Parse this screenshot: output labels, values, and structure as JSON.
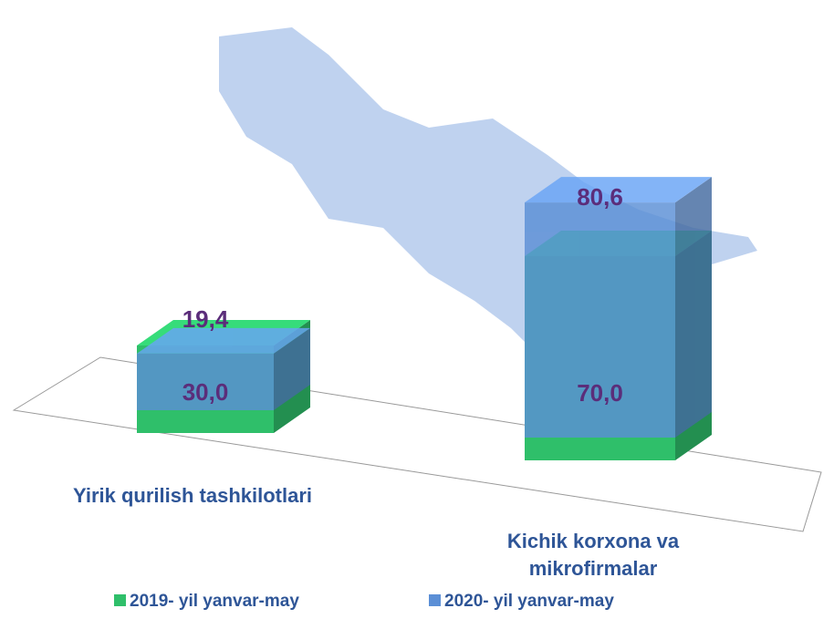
{
  "chart_data": {
    "type": "bar3d",
    "categories": [
      "Yirik qurilish tashkilotlari",
      [
        "Kichik korxona va",
        "mikrofirmalar"
      ]
    ],
    "series": [
      {
        "name": "2019- yil yanvar-may",
        "color": "#2fbf6a",
        "values": [
          30.0,
          70.0
        ],
        "value_labels": [
          "30,0",
          "70,0"
        ]
      },
      {
        "name": "2020- yil yanvar-may",
        "color": "#5b8fd6",
        "values": [
          19.4,
          80.6
        ],
        "value_labels": [
          "19,4",
          "80,6"
        ]
      }
    ],
    "legend": "bottom"
  }
}
